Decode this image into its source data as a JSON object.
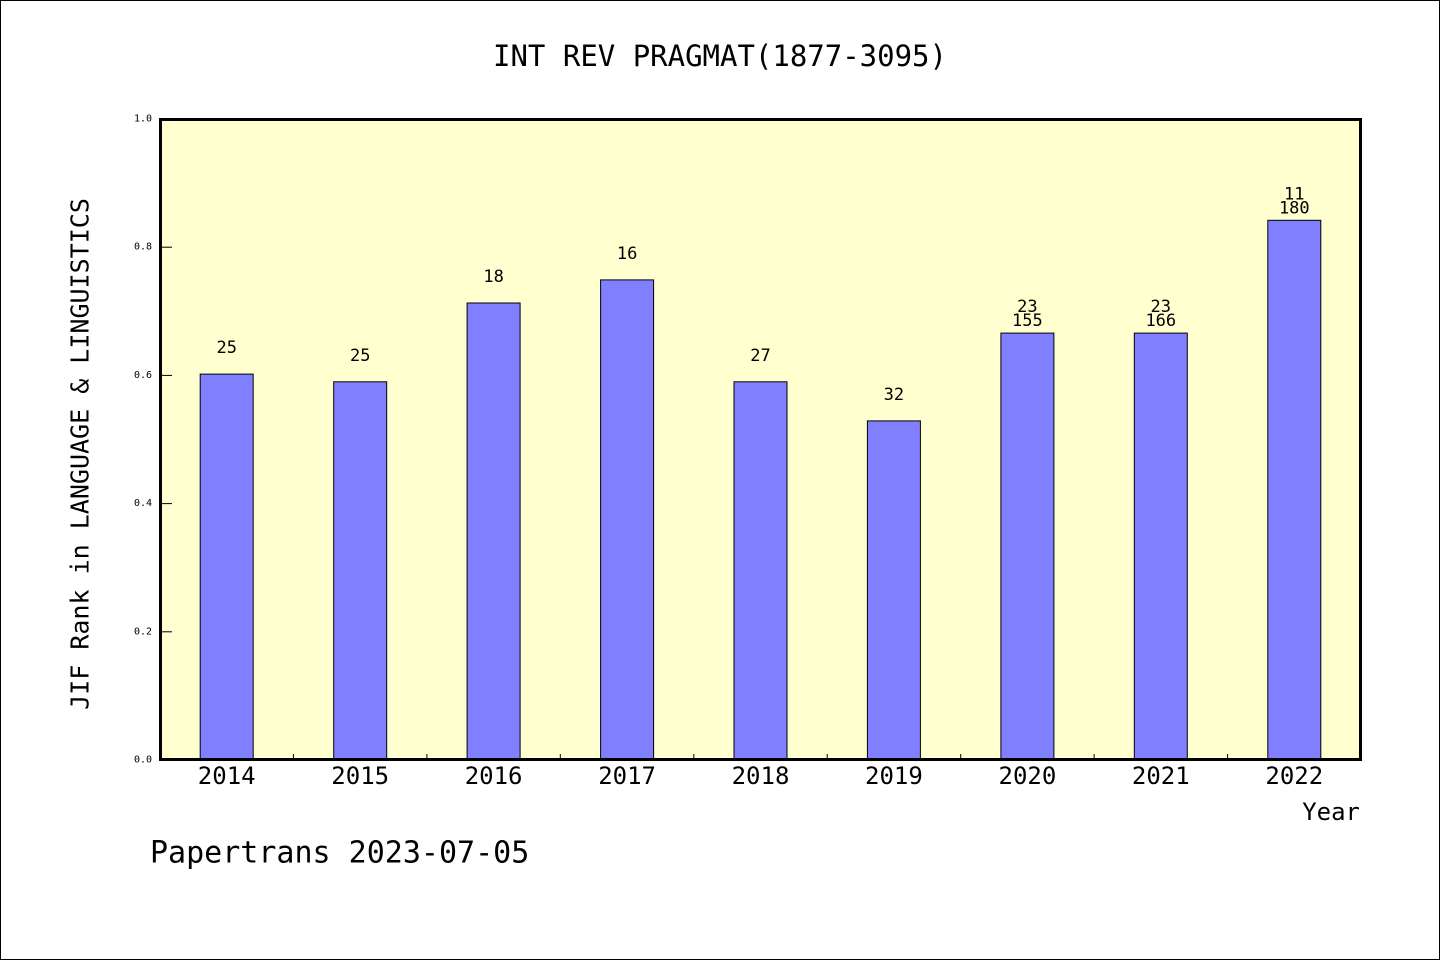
{
  "chart_data": {
    "type": "bar",
    "title": "INT REV PRAGMAT(1877-3095)",
    "xlabel": "Year",
    "ylabel": "JIF Rank in LANGUAGE & LINGUISTICS",
    "ylim": [
      0,
      1
    ],
    "yticks": [
      "0.0",
      "0.2",
      "0.4",
      "0.6",
      "0.8",
      "1.0"
    ],
    "categories": [
      "2014",
      "2015",
      "2016",
      "2017",
      "2018",
      "2019",
      "2020",
      "2021",
      "2022"
    ],
    "values": [
      0.602,
      0.59,
      0.713,
      0.749,
      0.59,
      0.529,
      0.666,
      0.666,
      0.842
    ],
    "data_labels": [
      [
        "25"
      ],
      [
        "25"
      ],
      [
        "18"
      ],
      [
        "16"
      ],
      [
        "27"
      ],
      [
        "32"
      ],
      [
        "23",
        "155"
      ],
      [
        "23",
        "166"
      ],
      [
        "11",
        "180"
      ]
    ],
    "grid": false
  },
  "footer": "Papertrans 2023-07-05",
  "colors": {
    "bar": "#8080FF",
    "plot_background": "#FFFFD0",
    "bar_outline": "#000000"
  }
}
